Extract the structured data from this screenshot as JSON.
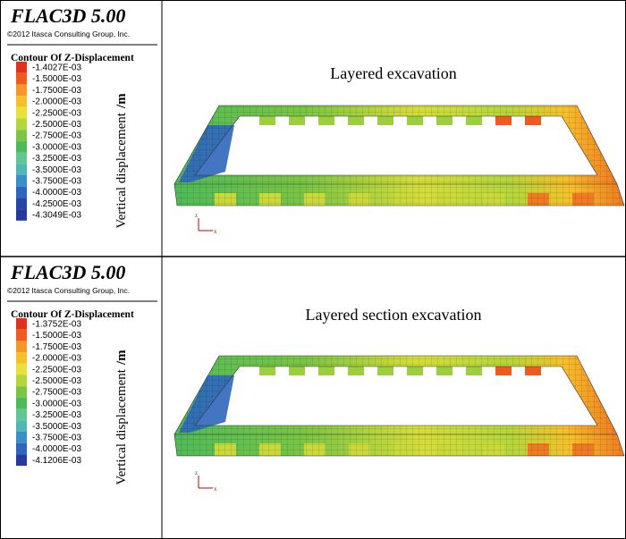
{
  "panels": [
    {
      "software": "FLAC3D 5.00",
      "copyright": "©2012 Itasca Consulting Group, Inc.",
      "legend_title": "Contour Of Z-Displacement",
      "legend": [
        {
          "label": "-1.4027E-03",
          "color": "#e0301e"
        },
        {
          "label": "-1.5000E-03",
          "color": "#ef5a1f"
        },
        {
          "label": "-1.7500E-03",
          "color": "#f7942a"
        },
        {
          "label": "-2.0000E-03",
          "color": "#f6c02a"
        },
        {
          "label": "-2.2500E-03",
          "color": "#e7e23a"
        },
        {
          "label": "-2.5000E-03",
          "color": "#b4d63c"
        },
        {
          "label": "-2.7500E-03",
          "color": "#7cc544"
        },
        {
          "label": "-3.0000E-03",
          "color": "#4fba58"
        },
        {
          "label": "-3.2500E-03",
          "color": "#63c495"
        },
        {
          "label": "-3.5000E-03",
          "color": "#4fb8b4"
        },
        {
          "label": "-3.7500E-03",
          "color": "#3a8fc8"
        },
        {
          "label": "-4.0000E-03",
          "color": "#2f66bd"
        },
        {
          "label": "-4.2500E-03",
          "color": "#2a45a8"
        },
        {
          "label": "-4.3049E-03",
          "color": "#253a9a"
        }
      ],
      "axis_label": "Vertical displacement",
      "axis_unit": "/m",
      "caption": "Layered excavation",
      "triad": [
        "z",
        "x"
      ]
    },
    {
      "software": "FLAC3D 5.00",
      "copyright": "©2012 Itasca Consulting Group, Inc.",
      "legend_title": "Contour Of Z-Displacement",
      "legend": [
        {
          "label": "-1.3752E-03",
          "color": "#e0301e"
        },
        {
          "label": "-1.5000E-03",
          "color": "#ef5a1f"
        },
        {
          "label": "-1.7500E-03",
          "color": "#f7942a"
        },
        {
          "label": "-2.0000E-03",
          "color": "#f6c02a"
        },
        {
          "label": "-2.2500E-03",
          "color": "#e7e23a"
        },
        {
          "label": "-2.5000E-03",
          "color": "#b4d63c"
        },
        {
          "label": "-2.7500E-03",
          "color": "#7cc544"
        },
        {
          "label": "-3.0000E-03",
          "color": "#4fba58"
        },
        {
          "label": "-3.2500E-03",
          "color": "#63c495"
        },
        {
          "label": "-3.5000E-03",
          "color": "#4fb8b4"
        },
        {
          "label": "-3.7500E-03",
          "color": "#3a8fc8"
        },
        {
          "label": "-4.0000E-03",
          "color": "#2f66bd"
        },
        {
          "label": "-4.1206E-03",
          "color": "#253a9a"
        }
      ],
      "axis_label": "Vertical displacement",
      "axis_unit": "/m",
      "caption": "Layered section excavation",
      "triad": [
        "z",
        "x"
      ]
    }
  ]
}
